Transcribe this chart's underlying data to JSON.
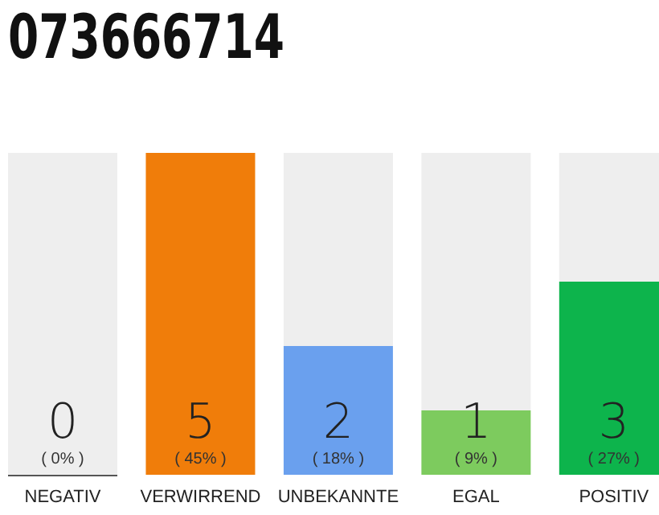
{
  "chart_data": {
    "type": "bar",
    "title": "073666714",
    "stacked": true,
    "categories": [
      "NEGATIV",
      "VERWIRREND",
      "UNBEKANNTE",
      "EGAL",
      "POSITIV"
    ],
    "series": [
      {
        "colors": [
          "#555555",
          "#f07d0a",
          "#6aa0ee",
          "#7dcb5e",
          "#0db44c"
        ],
        "values": [
          0,
          45,
          18,
          9,
          27
        ],
        "value_labels": [
          "( 0% )",
          "( 45% )",
          "( 18% )",
          "( 9% )",
          "( 27% )"
        ]
      },
      {
        "color": "#eeeeee",
        "values": [
          45,
          0,
          27,
          36,
          18
        ]
      }
    ],
    "annotations": [
      "0",
      "5",
      "2",
      "1",
      "3"
    ]
  }
}
